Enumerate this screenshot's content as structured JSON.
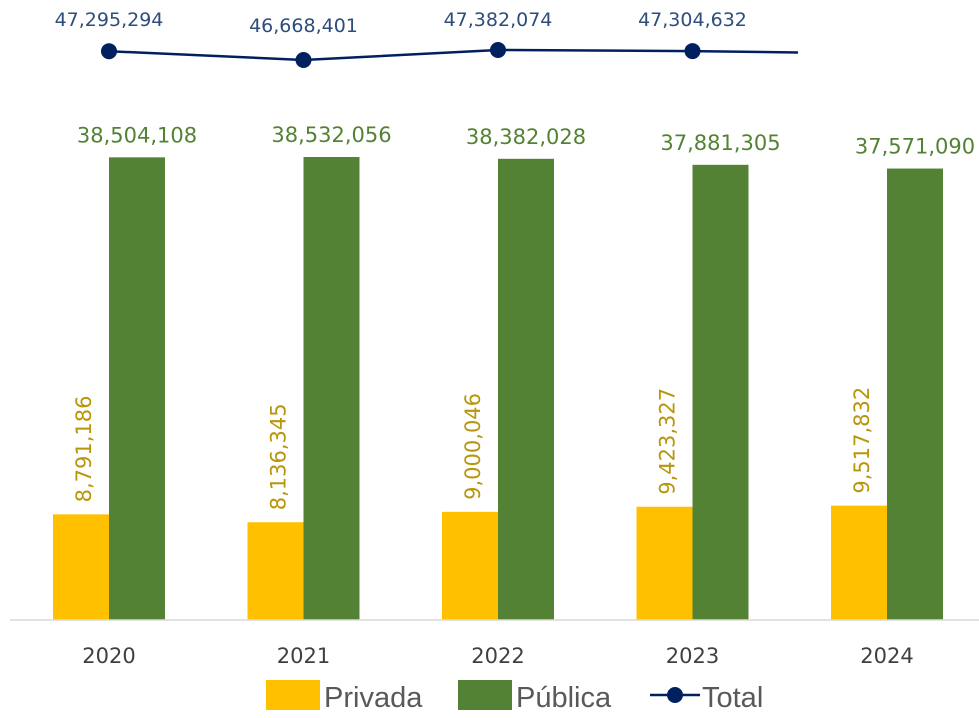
{
  "chart_data": {
    "type": "bar",
    "categories": [
      "2020",
      "2021",
      "2022",
      "2023",
      "2024"
    ],
    "series": [
      {
        "name": "Privada",
        "kind": "bar",
        "color": "#FFC000",
        "values": [
          8791186,
          8136345,
          9000046,
          9423327,
          9517832
        ],
        "labels": [
          "8,791,186",
          "8,136,345",
          "9,000,046",
          "9,423,327",
          "9,517,832"
        ],
        "label_color": "#B8960C"
      },
      {
        "name": "Pública",
        "kind": "bar",
        "color": "#548235",
        "values": [
          38504108,
          38532056,
          38382028,
          37881305,
          37571090
        ],
        "labels": [
          "38,504,108",
          "38,532,056",
          "38,382,028",
          "37,881,305",
          "37,571,090"
        ],
        "label_color": "#548235"
      },
      {
        "name": "Total",
        "kind": "line",
        "color": "#002060",
        "values": [
          47295294,
          46668401,
          47382074,
          47304632,
          null
        ],
        "labels": [
          "47,295,294",
          "46,668,401",
          "47,382,074",
          "47,304,632",
          ""
        ],
        "label_color": "#2E4D7B"
      }
    ],
    "grid": false,
    "legend_position": "bottom"
  },
  "legend": {
    "privada": "Privada",
    "publica": "Pública",
    "total": "Total"
  }
}
